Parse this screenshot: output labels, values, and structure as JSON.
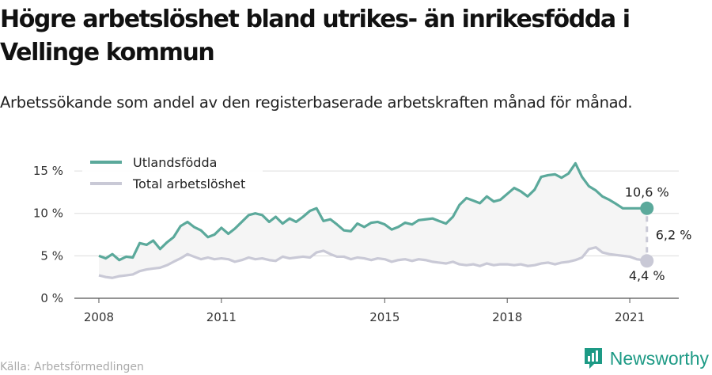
{
  "title": "Högre arbetslöshet bland utrikes- än inrikesfödda i Vellinge kommun",
  "subtitle": "Arbetssökande som andel av den registerbaserade arbetskraften månad för månad.",
  "source": "Källa: Arbetsförmedlingen",
  "brand": {
    "name": "Newsworthy",
    "icon": "bar-chart-logo-icon",
    "color": "#1d9a85"
  },
  "colors": {
    "foreign": "#5ba99b",
    "total": "#c9c9d6",
    "fill": "#f5f5f5",
    "grid": "#dddddd"
  },
  "chart_data": {
    "type": "line",
    "y_ticks": [
      "0 %",
      "5 %",
      "10 %",
      "15 %"
    ],
    "y_tick_values": [
      0,
      5,
      10,
      15
    ],
    "x_ticks": [
      "2008",
      "2011",
      "2015",
      "2018",
      "2021"
    ],
    "x_tick_values": [
      2008.0,
      2011.0,
      2015.0,
      2018.0,
      2021.0
    ],
    "xlim": [
      2007.4,
      2022.2
    ],
    "ylim": [
      0,
      16.5
    ],
    "legend_position": "top-left",
    "annotations": {
      "last_foreign": "10,6 %",
      "gap": "6,2 %",
      "last_total": "4,4 %"
    },
    "series": [
      {
        "name": "Utlandsfödda",
        "x": [
          2008.0,
          2008.17,
          2008.33,
          2008.5,
          2008.67,
          2008.83,
          2009.0,
          2009.17,
          2009.33,
          2009.5,
          2009.67,
          2009.83,
          2010.0,
          2010.17,
          2010.33,
          2010.5,
          2010.67,
          2010.83,
          2011.0,
          2011.17,
          2011.33,
          2011.5,
          2011.67,
          2011.83,
          2012.0,
          2012.17,
          2012.33,
          2012.5,
          2012.67,
          2012.83,
          2013.0,
          2013.17,
          2013.33,
          2013.5,
          2013.67,
          2013.83,
          2014.0,
          2014.17,
          2014.33,
          2014.5,
          2014.67,
          2014.83,
          2015.0,
          2015.17,
          2015.33,
          2015.5,
          2015.67,
          2015.83,
          2016.0,
          2016.17,
          2016.33,
          2016.5,
          2016.67,
          2016.83,
          2017.0,
          2017.17,
          2017.33,
          2017.5,
          2017.67,
          2017.83,
          2018.0,
          2018.17,
          2018.33,
          2018.5,
          2018.67,
          2018.83,
          2019.0,
          2019.17,
          2019.33,
          2019.5,
          2019.67,
          2019.83,
          2020.0,
          2020.17,
          2020.33,
          2020.5,
          2020.67,
          2020.83,
          2021.0,
          2021.17,
          2021.33,
          2021.42
        ],
        "values": [
          5.0,
          4.7,
          5.2,
          4.5,
          4.9,
          4.8,
          6.5,
          6.3,
          6.8,
          5.8,
          6.6,
          7.2,
          8.5,
          9.0,
          8.4,
          8.0,
          7.2,
          7.5,
          8.3,
          7.6,
          8.2,
          9.0,
          9.8,
          10.0,
          9.8,
          9.0,
          9.6,
          8.8,
          9.4,
          9.0,
          9.6,
          10.3,
          10.6,
          9.1,
          9.3,
          8.7,
          8.0,
          7.9,
          8.8,
          8.4,
          8.9,
          9.0,
          8.7,
          8.1,
          8.4,
          8.9,
          8.7,
          9.2,
          9.3,
          9.4,
          9.1,
          8.8,
          9.6,
          11.0,
          11.8,
          11.5,
          11.2,
          12.0,
          11.4,
          11.6,
          12.3,
          13.0,
          12.6,
          12.0,
          12.8,
          14.3,
          14.5,
          14.6,
          14.2,
          14.7,
          15.9,
          14.3,
          13.2,
          12.7,
          12.0,
          11.6,
          11.1,
          10.6,
          10.6,
          10.6,
          10.6,
          10.6
        ]
      },
      {
        "name": "Total arbetslöshet",
        "x": [
          2008.0,
          2008.17,
          2008.33,
          2008.5,
          2008.67,
          2008.83,
          2009.0,
          2009.17,
          2009.33,
          2009.5,
          2009.67,
          2009.83,
          2010.0,
          2010.17,
          2010.33,
          2010.5,
          2010.67,
          2010.83,
          2011.0,
          2011.17,
          2011.33,
          2011.5,
          2011.67,
          2011.83,
          2012.0,
          2012.17,
          2012.33,
          2012.5,
          2012.67,
          2012.83,
          2013.0,
          2013.17,
          2013.33,
          2013.5,
          2013.67,
          2013.83,
          2014.0,
          2014.17,
          2014.33,
          2014.5,
          2014.67,
          2014.83,
          2015.0,
          2015.17,
          2015.33,
          2015.5,
          2015.67,
          2015.83,
          2016.0,
          2016.17,
          2016.33,
          2016.5,
          2016.67,
          2016.83,
          2017.0,
          2017.17,
          2017.33,
          2017.5,
          2017.67,
          2017.83,
          2018.0,
          2018.17,
          2018.33,
          2018.5,
          2018.67,
          2018.83,
          2019.0,
          2019.17,
          2019.33,
          2019.5,
          2019.67,
          2019.83,
          2020.0,
          2020.17,
          2020.33,
          2020.5,
          2020.67,
          2020.83,
          2021.0,
          2021.17,
          2021.33,
          2021.42
        ],
        "values": [
          2.7,
          2.5,
          2.4,
          2.6,
          2.7,
          2.8,
          3.2,
          3.4,
          3.5,
          3.6,
          3.9,
          4.3,
          4.7,
          5.2,
          4.9,
          4.6,
          4.8,
          4.6,
          4.7,
          4.6,
          4.3,
          4.5,
          4.8,
          4.6,
          4.7,
          4.5,
          4.4,
          4.9,
          4.7,
          4.8,
          4.9,
          4.8,
          5.4,
          5.6,
          5.2,
          4.9,
          4.9,
          4.6,
          4.8,
          4.7,
          4.5,
          4.7,
          4.6,
          4.3,
          4.5,
          4.6,
          4.4,
          4.6,
          4.5,
          4.3,
          4.2,
          4.1,
          4.3,
          4.0,
          3.9,
          4.0,
          3.8,
          4.1,
          3.9,
          4.0,
          4.0,
          3.9,
          4.0,
          3.8,
          3.9,
          4.1,
          4.2,
          4.0,
          4.2,
          4.3,
          4.5,
          4.8,
          5.8,
          6.0,
          5.4,
          5.2,
          5.1,
          5.0,
          4.9,
          4.6,
          4.5,
          4.4
        ]
      }
    ]
  }
}
